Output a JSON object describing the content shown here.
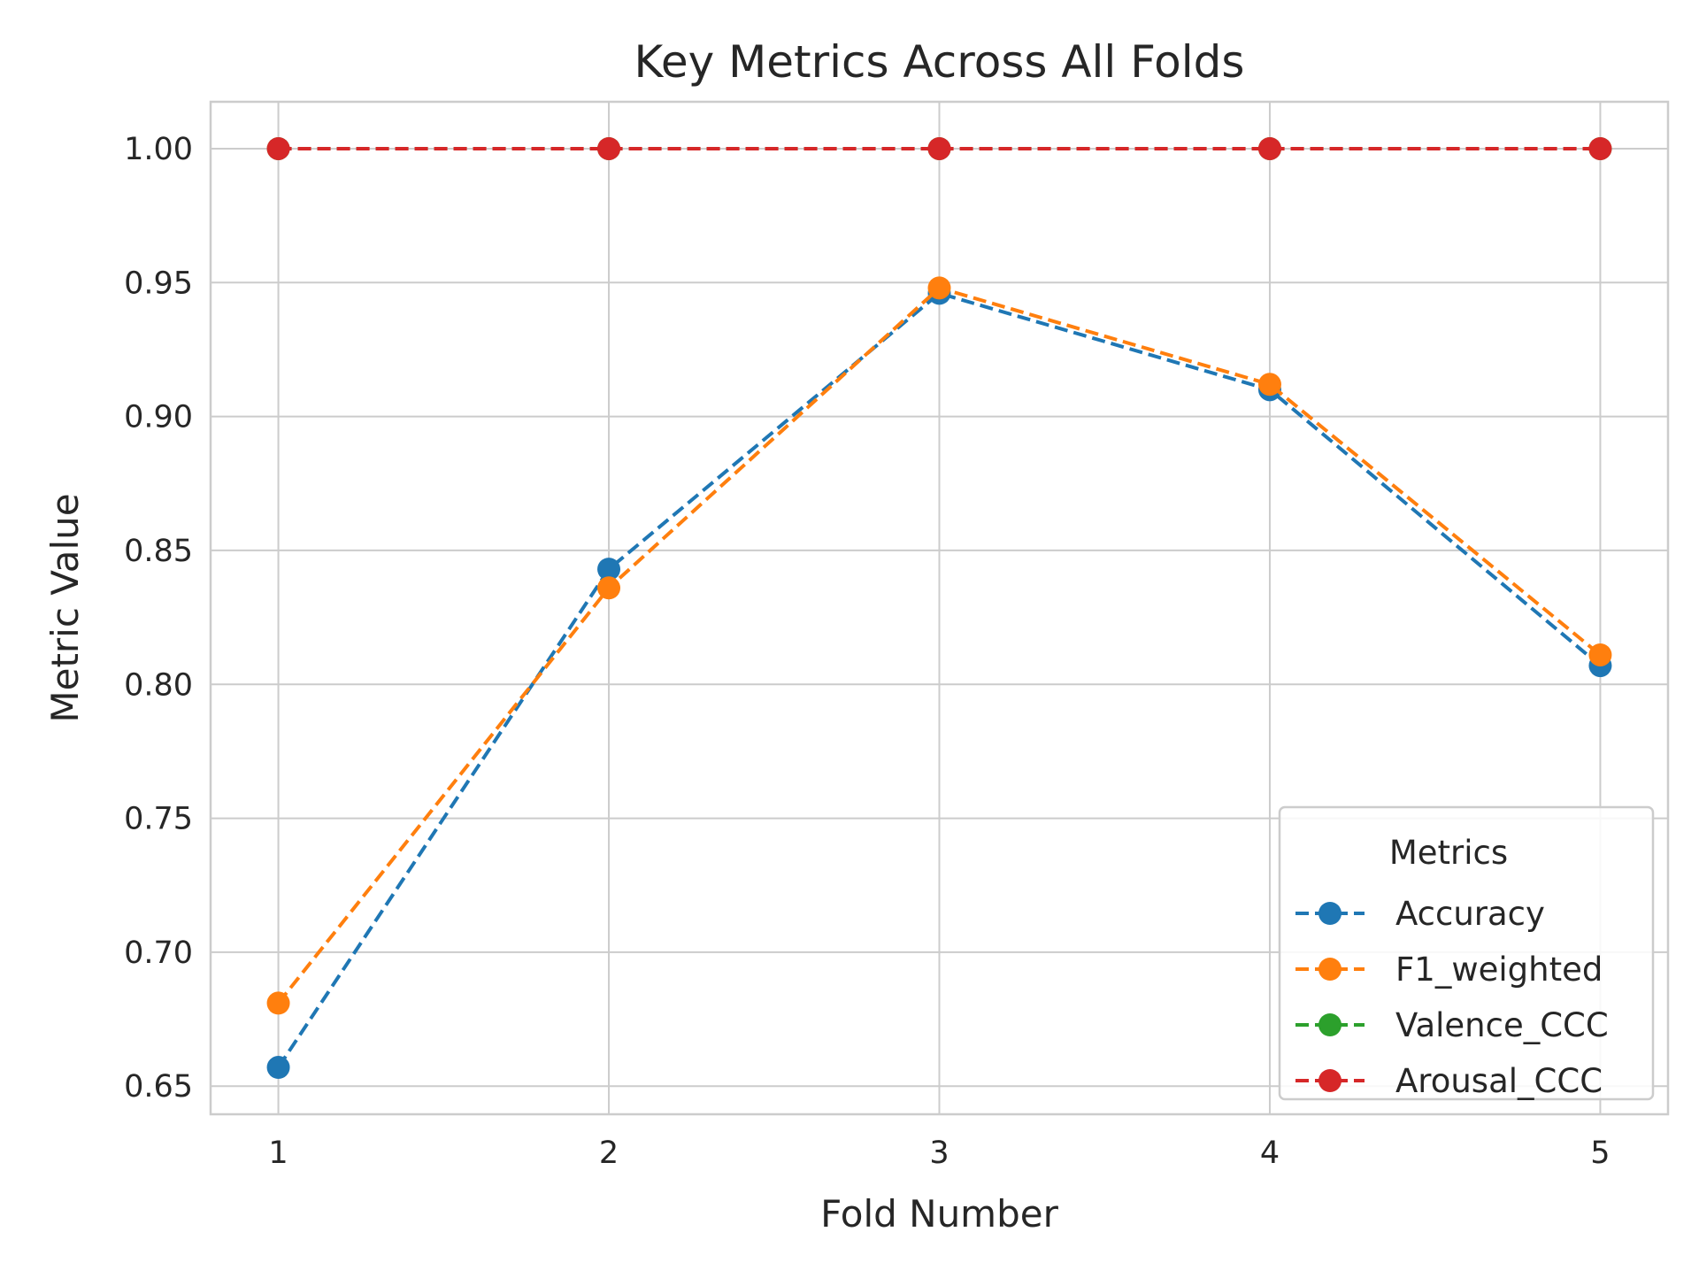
{
  "chart_data": {
    "type": "line",
    "title": "Key Metrics Across All Folds",
    "xlabel": "Fold Number",
    "ylabel": "Metric Value",
    "x": [
      1,
      2,
      3,
      4,
      5
    ],
    "x_tick_labels": [
      "1",
      "2",
      "3",
      "4",
      "5"
    ],
    "xlim": [
      0.795,
      5.205
    ],
    "ylim": [
      0.6395,
      1.0175
    ],
    "y_ticks": [
      0.65,
      0.7,
      0.75,
      0.8,
      0.85,
      0.9,
      0.95,
      1.0
    ],
    "y_tick_labels": [
      "0.65",
      "0.70",
      "0.75",
      "0.80",
      "0.85",
      "0.90",
      "0.95",
      "1.00"
    ],
    "grid": true,
    "line_style": "dashed",
    "marker": "circle",
    "legend": {
      "title": "Metrics",
      "placement": "lower-right"
    },
    "series": [
      {
        "name": "Accuracy",
        "color": "#1f77b4",
        "values": [
          0.657,
          0.843,
          0.946,
          0.91,
          0.807
        ]
      },
      {
        "name": "F1_weighted",
        "color": "#ff7f0e",
        "values": [
          0.681,
          0.836,
          0.948,
          0.912,
          0.811
        ]
      },
      {
        "name": "Valence_CCC",
        "color": "#2ca02c",
        "values": [
          1.0,
          1.0,
          1.0,
          1.0,
          1.0
        ]
      },
      {
        "name": "Arousal_CCC",
        "color": "#d62728",
        "values": [
          1.0,
          1.0,
          1.0,
          1.0,
          1.0
        ]
      }
    ]
  }
}
